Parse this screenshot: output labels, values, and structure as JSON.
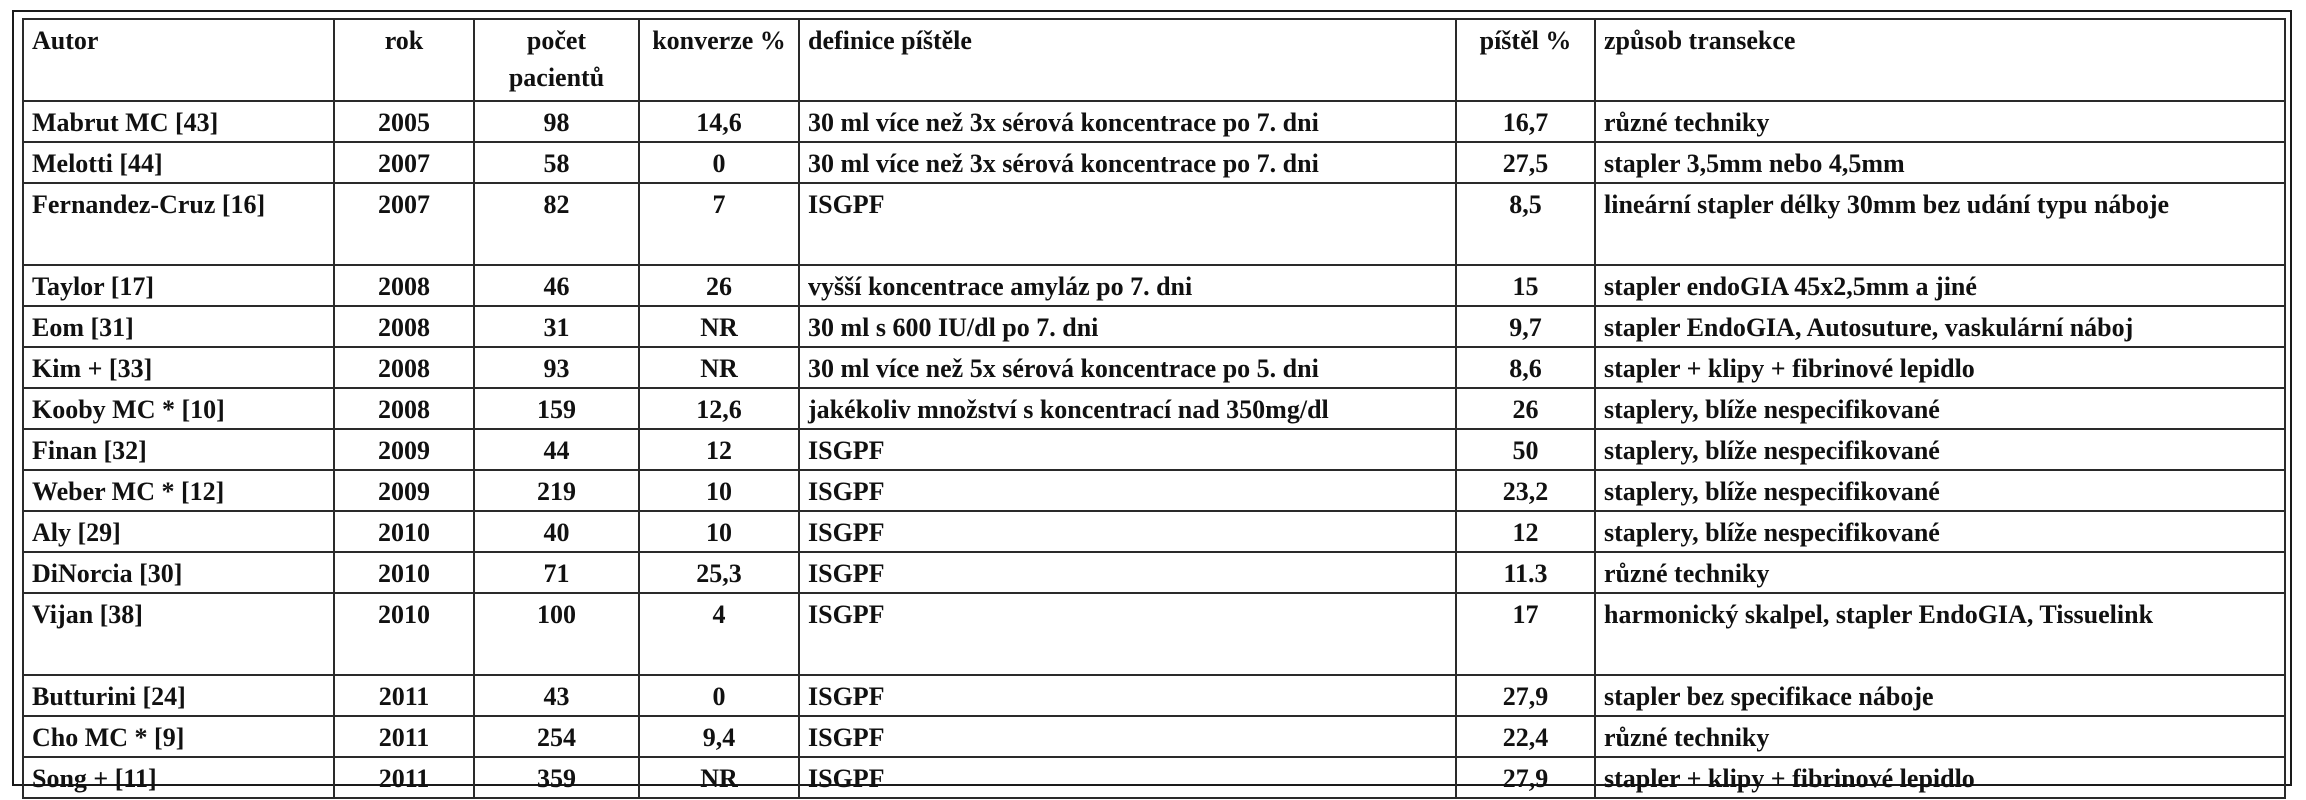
{
  "headers": {
    "autor": "Autor",
    "rok": "rok",
    "pocet": "počet pacientů",
    "konverze": "konverze %",
    "definice": "definice píštěle",
    "pistel": "píštěl %",
    "zpusob": "způsob transekce"
  },
  "rows": [
    {
      "autor": "Mabrut MC [43]",
      "rok": "2005",
      "pocet": "98",
      "konverze": "14,6",
      "definice": "30 ml více než 3x sérová koncentrace po 7. dni",
      "pistel": "16,7",
      "zpusob": "různé techniky"
    },
    {
      "autor": "Melotti [44]",
      "rok": "2007",
      "pocet": "58",
      "konverze": "0",
      "definice": "30 ml více než 3x sérová koncentrace po 7. dni",
      "pistel": "27,5",
      "zpusob": "stapler 3,5mm nebo 4,5mm"
    },
    {
      "autor": "Fernandez-Cruz [16]",
      "rok": "2007",
      "pocet": "82",
      "konverze": "7",
      "definice": "ISGPF",
      "pistel": "8,5",
      "zpusob": "lineární stapler délky 30mm bez udání typu náboje"
    },
    {
      "autor": "Taylor [17]",
      "rok": "2008",
      "pocet": "46",
      "konverze": "26",
      "definice": "vyšší koncentrace amyláz po 7. dni",
      "pistel": "15",
      "zpusob": "stapler endoGIA 45x2,5mm a jiné"
    },
    {
      "autor": "Eom [31]",
      "rok": "2008",
      "pocet": "31",
      "konverze": "NR",
      "definice": "30 ml s 600 IU/dl po 7. dni",
      "pistel": "9,7",
      "zpusob": "stapler EndoGIA, Autosuture, vaskulární náboj"
    },
    {
      "autor": "Kim + [33]",
      "rok": "2008",
      "pocet": "93",
      "konverze": "NR",
      "definice": "30 ml více než 5x sérová koncentrace po 5. dni",
      "pistel": "8,6",
      "zpusob": "stapler + klipy + fibrinové lepidlo"
    },
    {
      "autor": "Kooby MC * [10]",
      "rok": "2008",
      "pocet": "159",
      "konverze": "12,6",
      "definice": "jakékoliv množství s koncentrací nad 350mg/dl",
      "pistel": "26",
      "zpusob": "staplery, blíže nespecifikované"
    },
    {
      "autor": "Finan [32]",
      "rok": "2009",
      "pocet": "44",
      "konverze": "12",
      "definice": "ISGPF",
      "pistel": "50",
      "zpusob": "staplery, blíže nespecifikované"
    },
    {
      "autor": "Weber MC * [12]",
      "rok": "2009",
      "pocet": "219",
      "konverze": "10",
      "definice": "ISGPF",
      "pistel": "23,2",
      "zpusob": "staplery, blíže nespecifikované"
    },
    {
      "autor": "Aly [29]",
      "rok": "2010",
      "pocet": "40",
      "konverze": "10",
      "definice": "ISGPF",
      "pistel": "12",
      "zpusob": "staplery, blíže nespecifikované"
    },
    {
      "autor": "DiNorcia [30]",
      "rok": "2010",
      "pocet": "71",
      "konverze": "25,3",
      "definice": "ISGPF",
      "pistel": "11.3",
      "zpusob": "různé techniky"
    },
    {
      "autor": "Vijan [38]",
      "rok": "2010",
      "pocet": "100",
      "konverze": "4",
      "definice": "ISGPF",
      "pistel": "17",
      "zpusob": "harmonický skalpel, stapler EndoGIA, Tissuelink"
    },
    {
      "autor": "Butturini [24]",
      "rok": "2011",
      "pocet": "43",
      "konverze": "0",
      "definice": "ISGPF",
      "pistel": "27,9",
      "zpusob": "stapler bez specifikace náboje"
    },
    {
      "autor": "Cho MC * [9]",
      "rok": "2011",
      "pocet": "254",
      "konverze": "9,4",
      "definice": "ISGPF",
      "pistel": "22,4",
      "zpusob": "různé techniky"
    },
    {
      "autor": "Song + [11]",
      "rok": "2011",
      "pocet": "359",
      "konverze": "NR",
      "definice": "ISGPF",
      "pistel": "27,9",
      "zpusob": "stapler + klipy + fibrinové lepidlo"
    }
  ]
}
